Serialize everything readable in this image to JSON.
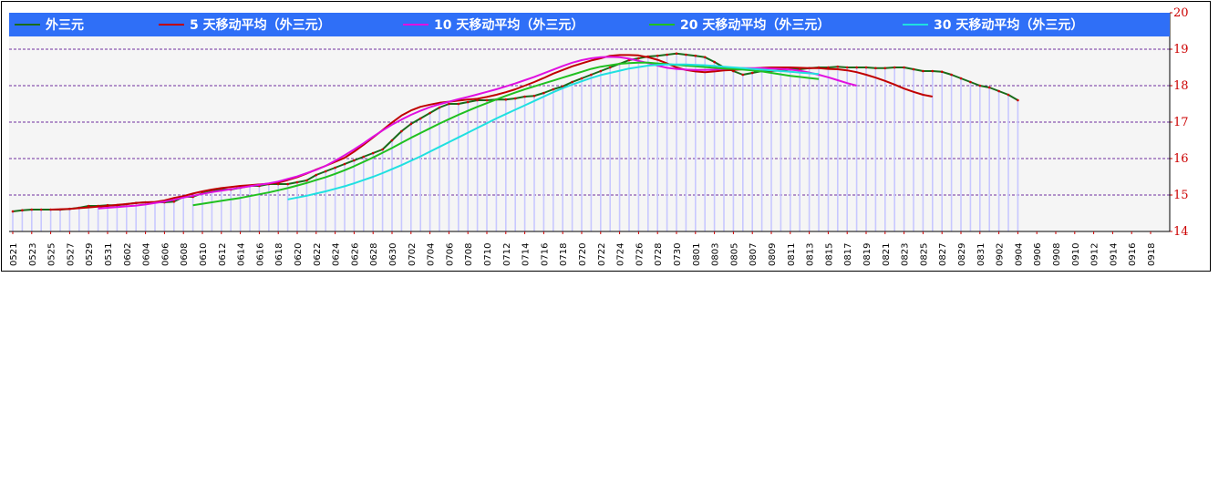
{
  "chart_data": {
    "type": "line",
    "ylim": [
      14,
      20
    ],
    "yticks": [
      "14",
      "15",
      "16",
      "17",
      "18",
      "19",
      "20"
    ],
    "grid": true,
    "legend_position": "top",
    "colors": {
      "plot_bg": "#f5f5f5",
      "legend_bg": "#2f6ff7",
      "grid": "#7030a0",
      "ytick": "#cc0000",
      "bar": "#c8c8ff",
      "spot_marker": "#cc0000"
    },
    "x_tick_labels": [
      "0521",
      "0523",
      "0525",
      "0527",
      "0529",
      "0531",
      "0602",
      "0604",
      "0606",
      "0608",
      "0610",
      "0612",
      "0614",
      "0616",
      "0618",
      "0620",
      "0622",
      "0624",
      "0626",
      "0628",
      "0630",
      "0702",
      "0704",
      "0706",
      "0708",
      "0710",
      "0712",
      "0714",
      "0716",
      "0718",
      "0720",
      "0722",
      "0724",
      "0726",
      "0728",
      "0730",
      "0801",
      "0803",
      "0805",
      "0807",
      "0809",
      "0811",
      "0813",
      "0815",
      "0817",
      "0819",
      "0821",
      "0823",
      "0825",
      "0827",
      "0829",
      "0831",
      "0902",
      "0904",
      "0906",
      "0908",
      "0910",
      "0912",
      "0914",
      "0916",
      "0918"
    ],
    "series": [
      {
        "name": "外三元",
        "color": "#1a6b1a",
        "start": 0,
        "markers": true,
        "values": [
          14.55,
          14.58,
          14.6,
          14.6,
          14.6,
          14.6,
          14.62,
          14.65,
          14.7,
          14.7,
          14.72,
          14.72,
          14.75,
          14.78,
          14.8,
          14.8,
          14.8,
          14.82,
          14.95,
          14.95,
          15.05,
          15.1,
          15.15,
          15.15,
          15.2,
          15.25,
          15.25,
          15.3,
          15.3,
          15.3,
          15.35,
          15.4,
          15.55,
          15.65,
          15.75,
          15.85,
          15.95,
          16.05,
          16.15,
          16.25,
          16.5,
          16.75,
          16.95,
          17.1,
          17.25,
          17.4,
          17.5,
          17.5,
          17.55,
          17.6,
          17.6,
          17.62,
          17.62,
          17.65,
          17.7,
          17.72,
          17.8,
          17.9,
          17.98,
          18.1,
          18.2,
          18.3,
          18.4,
          18.5,
          18.6,
          18.7,
          18.75,
          18.8,
          18.82,
          18.85,
          18.88,
          18.85,
          18.82,
          18.78,
          18.65,
          18.5,
          18.4,
          18.3,
          18.35,
          18.4,
          18.4,
          18.42,
          18.45,
          18.45,
          18.48,
          18.5,
          18.5,
          18.52,
          18.5,
          18.5,
          18.5,
          18.48,
          18.48,
          18.5,
          18.5,
          18.45,
          18.4,
          18.4,
          18.38,
          18.3,
          18.2,
          18.1,
          18.0,
          17.95,
          17.85,
          17.75,
          17.6
        ]
      },
      {
        "name": "5 天移动平均（外三元）",
        "color": "#c00000",
        "start": 4,
        "markers": false,
        "values": [
          14.6,
          14.61,
          14.62,
          14.64,
          14.66,
          14.68,
          14.7,
          14.73,
          14.75,
          14.78,
          14.8,
          14.81,
          14.85,
          14.92,
          14.97,
          15.04,
          15.1,
          15.15,
          15.19,
          15.22,
          15.25,
          15.27,
          15.29,
          15.31,
          15.34,
          15.41,
          15.49,
          15.59,
          15.7,
          15.8,
          15.91,
          16.02,
          16.19,
          16.38,
          16.58,
          16.78,
          16.99,
          17.18,
          17.32,
          17.42,
          17.48,
          17.53,
          17.56,
          17.59,
          17.62,
          17.64,
          17.69,
          17.75,
          17.82,
          17.9,
          18.0,
          18.1,
          18.21,
          18.33,
          18.43,
          18.53,
          18.61,
          18.69,
          18.75,
          18.82,
          18.84,
          18.84,
          18.83,
          18.78,
          18.71,
          18.61,
          18.5,
          18.43,
          18.39,
          18.37,
          18.39,
          18.42,
          18.43,
          18.45,
          18.47,
          18.49,
          18.5,
          18.5,
          18.5,
          18.49,
          18.48,
          18.48,
          18.46,
          18.45,
          18.42,
          18.37,
          18.3,
          18.22,
          18.13,
          18.03,
          17.92,
          17.83,
          17.75,
          17.7
        ]
      },
      {
        "name": "10 天移动平均（外三元）",
        "color": "#e010e0",
        "start": 9,
        "markers": false,
        "values": [
          14.63,
          14.65,
          14.67,
          14.69,
          14.71,
          14.74,
          14.78,
          14.82,
          14.87,
          14.93,
          14.98,
          15.03,
          15.08,
          15.12,
          15.16,
          15.2,
          15.24,
          15.28,
          15.32,
          15.37,
          15.44,
          15.51,
          15.6,
          15.69,
          15.8,
          15.94,
          16.09,
          16.25,
          16.42,
          16.6,
          16.77,
          16.93,
          17.07,
          17.2,
          17.31,
          17.41,
          17.49,
          17.56,
          17.63,
          17.69,
          17.76,
          17.83,
          17.9,
          17.98,
          18.06,
          18.15,
          18.24,
          18.34,
          18.44,
          18.54,
          18.63,
          18.7,
          18.75,
          18.78,
          18.79,
          18.78,
          18.74,
          18.68,
          18.62,
          18.55,
          18.49,
          18.46,
          18.44,
          18.43,
          18.43,
          18.44,
          18.46,
          18.47,
          18.48,
          18.48,
          18.48,
          18.47,
          18.46,
          18.44,
          18.41,
          18.36,
          18.3,
          18.23,
          18.15,
          18.07,
          18.0
        ]
      },
      {
        "name": "20 天移动平均（外三元）",
        "color": "#20c020",
        "start": 19,
        "markers": false,
        "values": [
          14.72,
          14.76,
          14.8,
          14.84,
          14.88,
          14.92,
          14.97,
          15.02,
          15.07,
          15.13,
          15.19,
          15.26,
          15.33,
          15.41,
          15.49,
          15.58,
          15.68,
          15.79,
          15.91,
          16.03,
          16.16,
          16.29,
          16.43,
          16.57,
          16.7,
          16.83,
          16.96,
          17.08,
          17.2,
          17.31,
          17.42,
          17.52,
          17.62,
          17.72,
          17.81,
          17.9,
          17.98,
          18.06,
          18.14,
          18.22,
          18.3,
          18.38,
          18.46,
          18.52,
          18.56,
          18.6,
          18.62,
          18.63,
          18.63,
          18.61,
          18.59,
          18.57,
          18.55,
          18.53,
          18.51,
          18.49,
          18.47,
          18.46,
          18.44,
          18.42,
          18.39,
          18.35,
          18.31,
          18.27,
          18.24,
          18.21,
          18.18
        ]
      },
      {
        "name": "30 天移动平均（外三元）",
        "color": "#20e0e0",
        "start": 29,
        "markers": false,
        "values": [
          14.88,
          14.93,
          14.98,
          15.04,
          15.1,
          15.17,
          15.24,
          15.32,
          15.41,
          15.5,
          15.6,
          15.71,
          15.82,
          15.94,
          16.06,
          16.19,
          16.32,
          16.45,
          16.58,
          16.71,
          16.84,
          16.97,
          17.1,
          17.22,
          17.34,
          17.46,
          17.58,
          17.7,
          17.82,
          17.93,
          18.03,
          18.12,
          18.21,
          18.29,
          18.35,
          18.41,
          18.47,
          18.51,
          18.55,
          18.57,
          18.58,
          18.58,
          18.58,
          18.57,
          18.56,
          18.54,
          18.52,
          18.5,
          18.48,
          18.46,
          18.44,
          18.42,
          18.4,
          18.38,
          18.36,
          18.34,
          18.32
        ]
      }
    ]
  }
}
